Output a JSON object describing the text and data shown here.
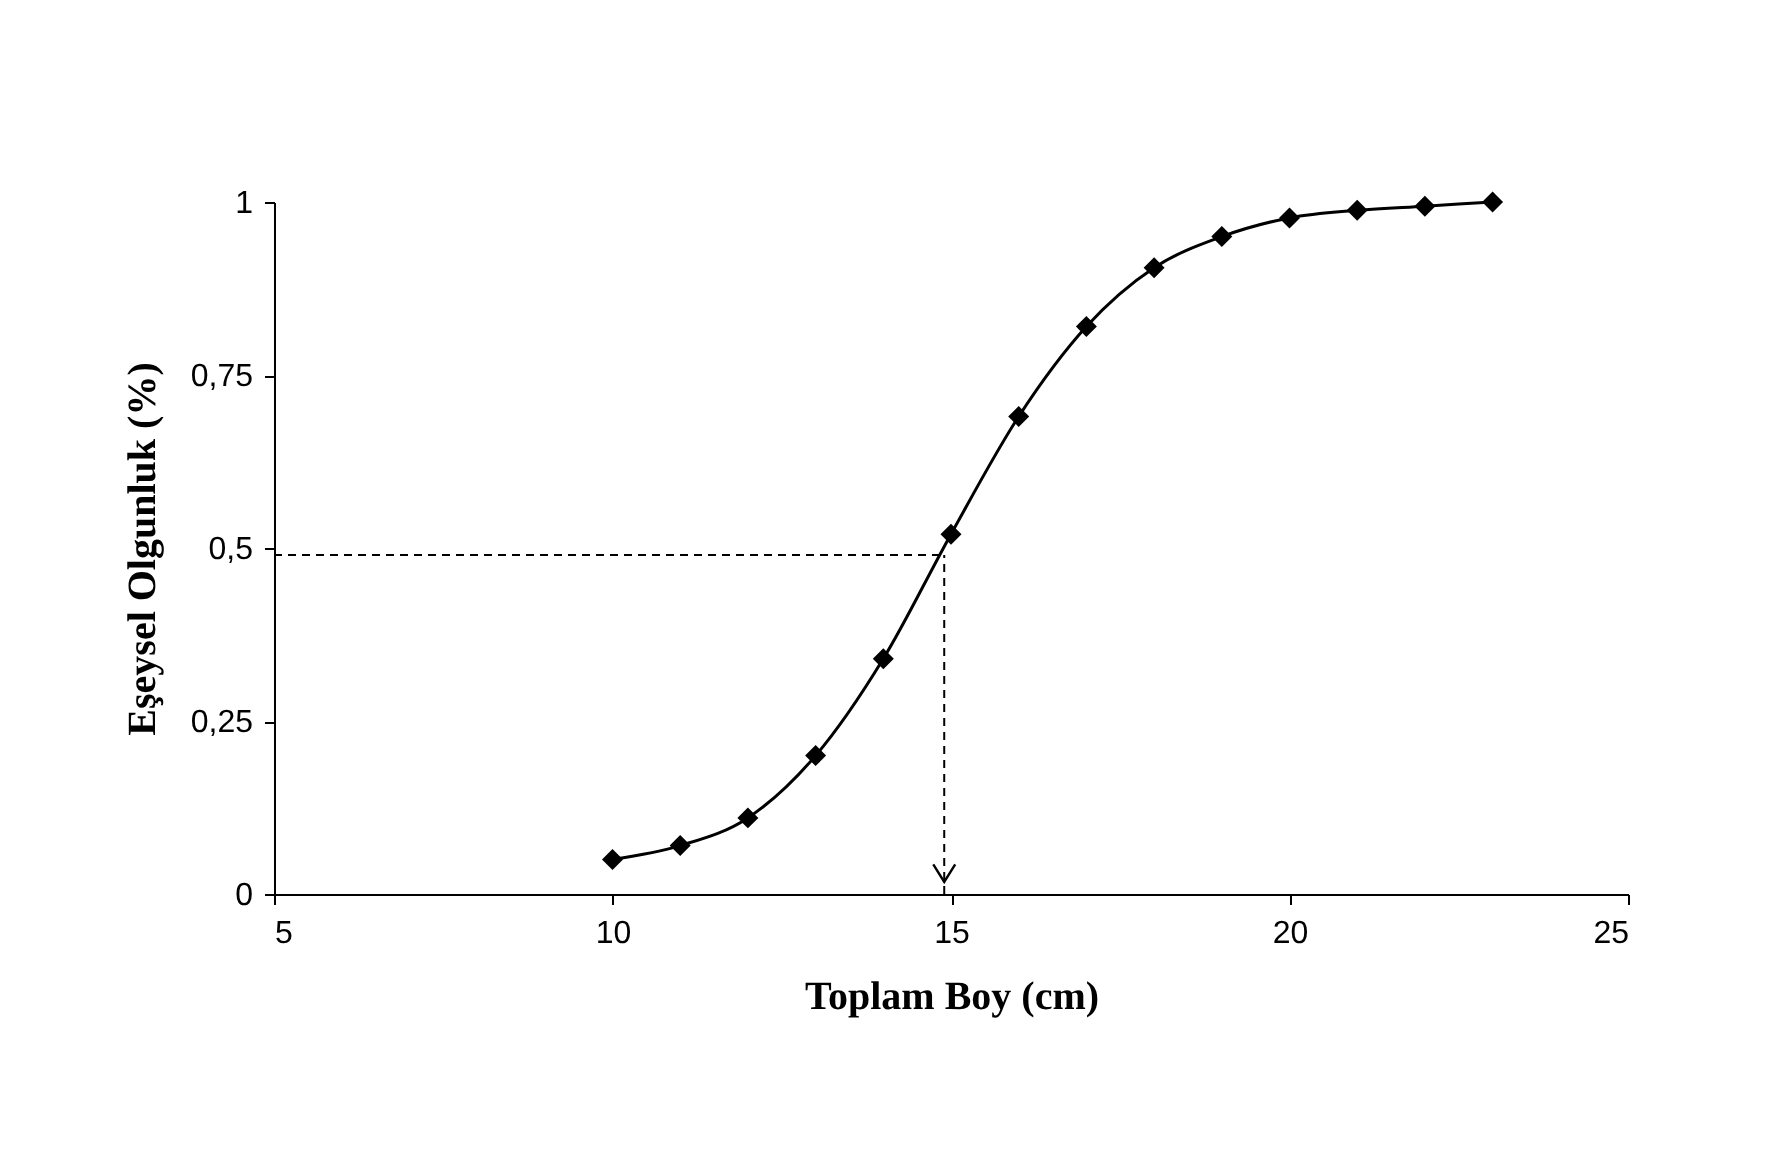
{
  "chart_data": {
    "type": "line",
    "xlabel": "Toplam Boy (cm)",
    "ylabel": "Eşeysel Olgunluk (%)",
    "x": [
      10,
      11,
      12,
      13,
      14,
      15,
      16,
      17,
      18,
      19,
      20,
      21,
      22,
      23
    ],
    "series": [
      {
        "color": "#000000",
        "values": [
          0.05,
          0.07,
          0.11,
          0.2,
          0.34,
          0.52,
          0.69,
          0.82,
          0.905,
          0.95,
          0.977,
          0.988,
          0.994,
          1.0
        ]
      }
    ],
    "marker": "diamond",
    "line_style": "solid",
    "xlim": [
      5,
      25
    ],
    "xticks": [
      5,
      10,
      15,
      20,
      25
    ],
    "ylim": [
      0,
      1
    ],
    "yticks": [
      0,
      {
        "value": 0.25,
        "label": "0,25"
      },
      {
        "value": 0.5,
        "label": "0,5"
      },
      {
        "value": 0.75,
        "label": "0,75"
      },
      1
    ],
    "ref_lines": [
      {
        "axis": "y",
        "value": 0.49,
        "line_style": "dashed"
      },
      {
        "axis": "x",
        "value": 14.9,
        "line_style": "dashed"
      }
    ],
    "grid": false
  }
}
